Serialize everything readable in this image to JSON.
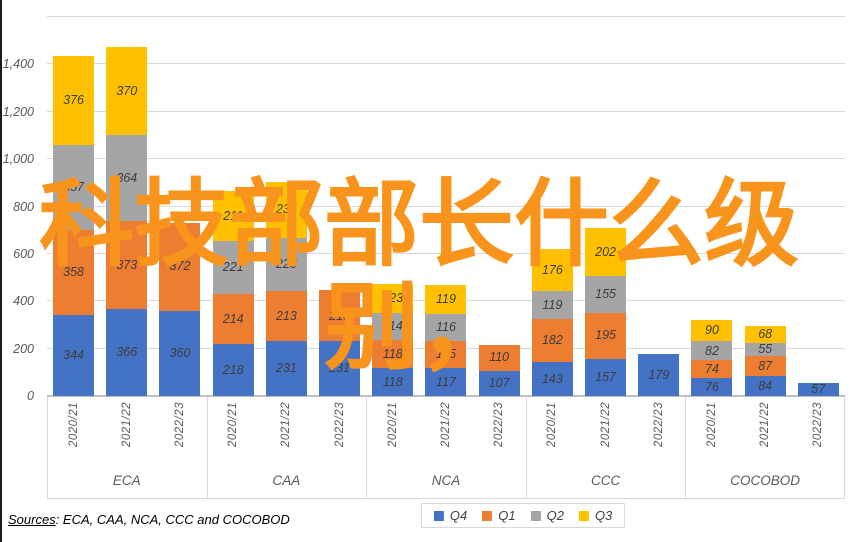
{
  "watermark": {
    "full_text": "科技部部长什么级别，",
    "line1": "科技部部长什么级",
    "line2": "别，",
    "color": "#F8941C"
  },
  "sources": {
    "label": "Sources",
    "rest": ": ECA, CAA, NCA, CCC and COCOBOD"
  },
  "legend": [
    {
      "label": "Q4",
      "color": "#4472C4"
    },
    {
      "label": "Q1",
      "color": "#ED7D31"
    },
    {
      "label": "Q2",
      "color": "#A5A5A5"
    },
    {
      "label": "Q3",
      "color": "#FFC000"
    }
  ],
  "chart_data": {
    "type": "bar",
    "stacked": true,
    "title": "",
    "xlabel": "",
    "ylabel": "",
    "ylim": [
      0,
      1600
    ],
    "y_tick_step": 200,
    "y_tick_labels": [
      "0",
      "200",
      "400",
      "600",
      "800",
      "1,000",
      "1,200",
      "1,400"
    ],
    "grid": true,
    "legend_position": "bottom-center",
    "series_order_bottom_to_top": [
      "Q4",
      "Q1",
      "Q2",
      "Q3"
    ],
    "series_colors": {
      "Q4": "#4472C4",
      "Q1": "#ED7D31",
      "Q2": "#A5A5A5",
      "Q3": "#FFC000"
    },
    "groups": [
      {
        "name": "ECA",
        "bars": [
          {
            "year": "2020/21",
            "Q4": 344,
            "Q1": 358,
            "Q2": 357,
            "Q3": 376
          },
          {
            "year": "2021/22",
            "Q4": 366,
            "Q1": 373,
            "Q2": 364,
            "Q3": 370
          },
          {
            "year": "2022/23",
            "Q4": 360,
            "Q1": 372
          }
        ]
      },
      {
        "name": "CAA",
        "bars": [
          {
            "year": "2020/21",
            "Q4": 218,
            "Q1": 214,
            "Q2": 221,
            "Q3": 211
          },
          {
            "year": "2021/22",
            "Q4": 231,
            "Q1": 213,
            "Q2": 225,
            "Q3": 235
          },
          {
            "year": "2022/23",
            "Q4": 231,
            "Q1": 215
          }
        ]
      },
      {
        "name": "NCA",
        "bars": [
          {
            "year": "2020/21",
            "Q4": 118,
            "Q1": 118,
            "Q2": 114,
            "Q3": 123
          },
          {
            "year": "2021/22",
            "Q4": 117,
            "Q1": 115,
            "Q2": 116,
            "Q3": 119
          },
          {
            "year": "2022/23",
            "Q4": 107,
            "Q1": 110
          }
        ]
      },
      {
        "name": "CCC",
        "bars": [
          {
            "year": "2020/21",
            "Q4": 143,
            "Q1": 182,
            "Q2": 119,
            "Q3": 176
          },
          {
            "year": "2021/22",
            "Q4": 157,
            "Q1": 195,
            "Q2": 155,
            "Q3": 202
          },
          {
            "year": "2022/23",
            "Q4": 179
          }
        ]
      },
      {
        "name": "COCOBOD",
        "bars": [
          {
            "year": "2020/21",
            "Q4": 76,
            "Q1": 74,
            "Q2": 82,
            "Q3": 90
          },
          {
            "year": "2021/22",
            "Q4": 84,
            "Q1": 87,
            "Q2": 55,
            "Q3": 68
          },
          {
            "year": "2022/23",
            "Q4": 57
          }
        ]
      }
    ]
  }
}
